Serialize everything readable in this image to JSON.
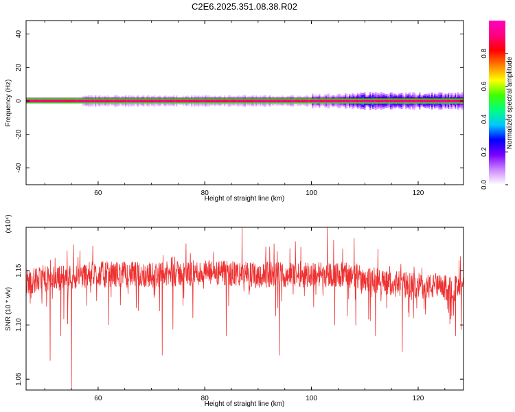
{
  "title": "C2E6.2025.351.08.38.R02",
  "chart_data": [
    {
      "type": "heatmap",
      "title": "C2E6.2025.351.08.38.R02",
      "xlabel": "Height of straight line (km)",
      "ylabel": "Frequency (Hz)",
      "xlim": [
        46.5,
        128.5
      ],
      "ylim": [
        -50,
        48
      ],
      "xticks": [
        "60",
        "80",
        "100",
        "120"
      ],
      "yticks": [
        "40",
        "20",
        "0",
        "-20",
        "-40"
      ],
      "band_center_hz": 0,
      "band_core_halfwidth_hz": 1.5,
      "sidelobe_segments": [
        {
          "x0": 57,
          "x1": 100,
          "halfwidth_hz": 3,
          "amplitude": 0.12
        },
        {
          "x0": 100,
          "x1": 107,
          "halfwidth_hz": 4,
          "amplitude": 0.2
        },
        {
          "x0": 107,
          "x1": 128.5,
          "halfwidth_hz": 4.5,
          "amplitude": 0.3
        }
      ],
      "colorbar": {
        "label": "Normalized spectral amplitude",
        "range": [
          0,
          1
        ],
        "ticks": [
          "0.0",
          "0.2",
          "0.4",
          "0.6",
          "0.8"
        ],
        "colors": [
          "#ffffff",
          "#cc88ff",
          "#7a00ff",
          "#0000ff",
          "#00c8ff",
          "#00ff80",
          "#40ff00",
          "#ffff00",
          "#ff8000",
          "#ff0000",
          "#ff0080",
          "#ff00c0"
        ]
      }
    },
    {
      "type": "line",
      "xlabel": "Height of straight line (km)",
      "ylabel": "SNR (10 * v/v)",
      "scale_label": "(x10⁴)",
      "xlim": [
        46.5,
        128.5
      ],
      "ylim": [
        1.04,
        1.19
      ],
      "xticks": [
        "60",
        "80",
        "100",
        "120"
      ],
      "yticks": [
        "1.15",
        "1.10",
        "1.05"
      ],
      "series": [
        {
          "color": "#ee3030",
          "x_start": 46.5,
          "x_end": 128.5,
          "mean_profile": [
            {
              "x": 46.5,
              "y": 1.14
            },
            {
              "x": 50,
              "y": 1.142
            },
            {
              "x": 60,
              "y": 1.147
            },
            {
              "x": 70,
              "y": 1.146
            },
            {
              "x": 80,
              "y": 1.148
            },
            {
              "x": 90,
              "y": 1.146
            },
            {
              "x": 100,
              "y": 1.147
            },
            {
              "x": 107,
              "y": 1.146
            },
            {
              "x": 115,
              "y": 1.138
            },
            {
              "x": 128.5,
              "y": 1.133
            }
          ],
          "noise_amplitude": 0.012,
          "spikes_down": [
            {
              "x": 51,
              "y": 1.067
            },
            {
              "x": 53,
              "y": 1.09
            },
            {
              "x": 55,
              "y": 1.04
            },
            {
              "x": 62,
              "y": 1.1
            },
            {
              "x": 72,
              "y": 1.072
            },
            {
              "x": 74,
              "y": 1.096
            },
            {
              "x": 84,
              "y": 1.09
            },
            {
              "x": 94,
              "y": 1.072
            },
            {
              "x": 108,
              "y": 1.085
            },
            {
              "x": 112,
              "y": 1.09
            },
            {
              "x": 117,
              "y": 1.075
            },
            {
              "x": 127,
              "y": 1.09
            }
          ],
          "spikes_up": [
            {
              "x": 87,
              "y": 1.19
            },
            {
              "x": 103,
              "y": 1.19
            },
            {
              "x": 108,
              "y": 1.18
            },
            {
              "x": 59,
              "y": 1.173
            },
            {
              "x": 93,
              "y": 1.175
            }
          ]
        }
      ]
    }
  ]
}
